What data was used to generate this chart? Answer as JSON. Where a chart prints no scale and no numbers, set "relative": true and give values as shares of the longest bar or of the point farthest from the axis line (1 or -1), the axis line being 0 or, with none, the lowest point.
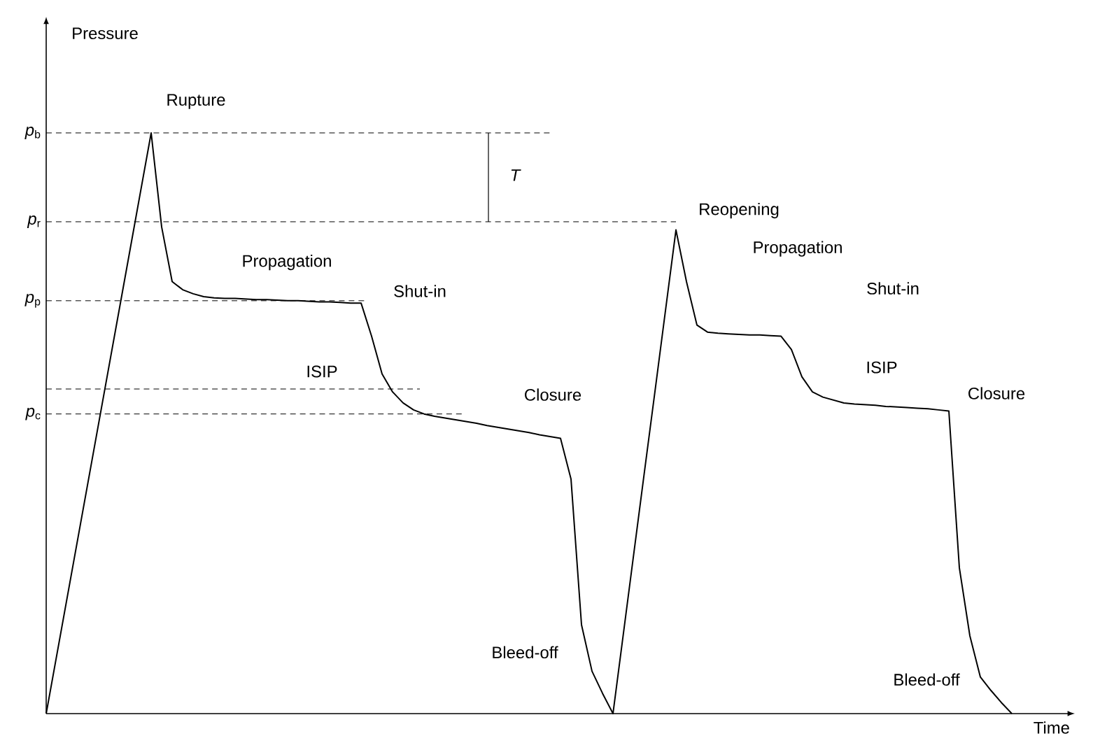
{
  "chart_data": {
    "type": "line",
    "relative": true,
    "xlabel": "Time",
    "color": "#000000",
    "categories": [
      null,
      null,
      null,
      null,
      null,
      null,
      null,
      null,
      null,
      null,
      null,
      null,
      null,
      null,
      null,
      null,
      null,
      null,
      null,
      null,
      null,
      null,
      null,
      null,
      null,
      null,
      null,
      null,
      null,
      null,
      null,
      null,
      null,
      null,
      null,
      null,
      null,
      null,
      null,
      null,
      null,
      null,
      null,
      null,
      null,
      null,
      null,
      null,
      null,
      null,
      null,
      null,
      null,
      null,
      null,
      null,
      null,
      null,
      null,
      null,
      null,
      null,
      null,
      null,
      null,
      null,
      null,
      null,
      null,
      null,
      null,
      null,
      null,
      null,
      null,
      null,
      null,
      null,
      null,
      null,
      null,
      null,
      null,
      null,
      null,
      null,
      null,
      null,
      null,
      null,
      null,
      null,
      null,
      null,
      null,
      null,
      null,
      null,
      null
    ],
    "values": [
      0,
      0.1,
      0.2,
      0.3,
      0.4,
      0.5,
      0.6,
      0.7,
      0.8,
      0.9,
      1,
      0.838,
      0.744,
      0.73,
      0.723,
      0.718,
      0.716,
      0.715,
      0.715,
      0.714,
      0.713,
      0.713,
      0.712,
      0.711,
      0.711,
      0.71,
      0.709,
      0.709,
      0.708,
      0.707,
      0.707,
      0.65,
      0.585,
      0.554,
      0.535,
      0.523,
      0.516,
      0.512,
      0.509,
      0.506,
      0.503,
      0.5,
      0.496,
      0.493,
      0.49,
      0.487,
      0.484,
      0.48,
      0.477,
      0.474,
      0.404,
      0.153,
      0.073,
      0.035,
      0,
      0.139,
      0.278,
      0.417,
      0.555,
      0.694,
      0.833,
      0.744,
      0.669,
      0.657,
      0.655,
      0.654,
      0.653,
      0.652,
      0.652,
      0.651,
      0.65,
      0.627,
      0.58,
      0.554,
      0.545,
      0.54,
      0.535,
      0.533,
      0.532,
      0.531,
      0.529,
      0.528,
      0.527,
      0.526,
      0.525,
      0.523,
      0.521,
      0.251,
      0.134,
      0.063,
      0.04,
      0.019,
      0,
      null,
      null,
      null,
      null,
      null,
      null
    ],
    "ref_lines": [
      {
        "axis": "y",
        "value": 1,
        "label": "*p*$_{b}$",
        "line_style": "dashed"
      },
      {
        "axis": "y",
        "value": 0.847,
        "label": "*p*$_{r}$",
        "line_style": "dashed"
      },
      {
        "axis": "y",
        "value": 0.711,
        "label": "*p*$_{p}$",
        "line_style": "dashed"
      },
      {
        "axis": "y",
        "value": 0.559,
        "line_style": "dashed"
      },
      {
        "axis": "y",
        "value": 0.516,
        "label": "*p*$_{c}$",
        "line_style": "dashed"
      }
    ],
    "annotations": [
      "Pressure",
      "Rupture",
      "Propagation",
      "Shut-in",
      "ISIP",
      "Closure",
      "Bleed-off",
      "Reopening",
      "Propagation",
      "Shut-in",
      "ISIP",
      "Closure",
      "Bleed-off",
      "T"
    ]
  }
}
